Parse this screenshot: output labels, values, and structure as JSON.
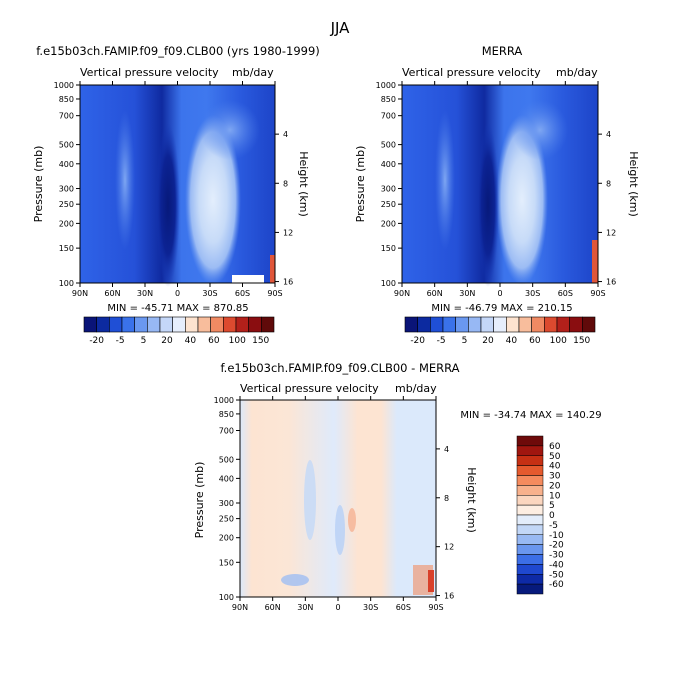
{
  "page": {
    "title": "JJA"
  },
  "colors": {
    "panel_neg_dark": "#0a1f8c",
    "panel_neg_mid": "#2b5ce6",
    "panel_neg_light": "#9bb8f2",
    "panel_pale": "#dbe8fb",
    "diff_pos_pale": "#fde4d2",
    "diff_neg_pale": "#dbe9fb"
  },
  "chart_data": [
    {
      "type": "heatmap",
      "title": "f.e15b03ch.FAMIP.f09_f09.CLB00 (yrs 1980-1999)",
      "subtitle_left": "Vertical pressure velocity",
      "subtitle_right": "mb/day",
      "xlabel": "",
      "ylabel": "Pressure (mb)",
      "y2label": "Height (km)",
      "x_ticks": [
        "90N",
        "60N",
        "30N",
        "0",
        "30S",
        "60S",
        "90S"
      ],
      "y_ticks": [
        "100",
        "150",
        "200",
        "250",
        "300",
        "400",
        "500",
        "700",
        "850",
        "1000"
      ],
      "y2_ticks": [
        "16",
        "12",
        "8",
        "4"
      ],
      "stats": "MIN = -45.71   MAX = 870.85",
      "colorbar_labels": [
        "-20",
        "-5",
        "5",
        "20",
        "40",
        "60",
        "100",
        "150"
      ]
    },
    {
      "type": "heatmap",
      "title": "MERRA",
      "subtitle_left": "Vertical pressure velocity",
      "subtitle_right": "mb/day",
      "xlabel": "",
      "ylabel": "Pressure (mb)",
      "y2label": "Height (km)",
      "x_ticks": [
        "90N",
        "60N",
        "30N",
        "0",
        "30S",
        "60S",
        "90S"
      ],
      "y_ticks": [
        "100",
        "150",
        "200",
        "250",
        "300",
        "400",
        "500",
        "700",
        "850",
        "1000"
      ],
      "y2_ticks": [
        "16",
        "12",
        "8",
        "4"
      ],
      "stats": "MIN = -46.79   MAX = 210.15",
      "colorbar_labels": [
        "-20",
        "-5",
        "5",
        "20",
        "40",
        "60",
        "100",
        "150"
      ]
    },
    {
      "type": "heatmap",
      "title": "f.e15b03ch.FAMIP.f09_f09.CLB00 - MERRA",
      "subtitle_left": "Vertical pressure velocity",
      "subtitle_right": "mb/day",
      "xlabel": "",
      "ylabel": "Pressure (mb)",
      "y2label": "Height (km)",
      "x_ticks": [
        "90N",
        "60N",
        "30N",
        "0",
        "30S",
        "60S",
        "90S"
      ],
      "y_ticks": [
        "100",
        "150",
        "200",
        "250",
        "300",
        "400",
        "500",
        "700",
        "850",
        "1000"
      ],
      "y2_ticks": [
        "16",
        "12",
        "8",
        "4"
      ],
      "stats": "MIN = -34.74   MAX = 140.29",
      "colorbar_labels": [
        "60",
        "50",
        "40",
        "30",
        "20",
        "10",
        "5",
        "0",
        "-5",
        "-10",
        "-20",
        "-30",
        "-40",
        "-50",
        "-60"
      ]
    }
  ]
}
